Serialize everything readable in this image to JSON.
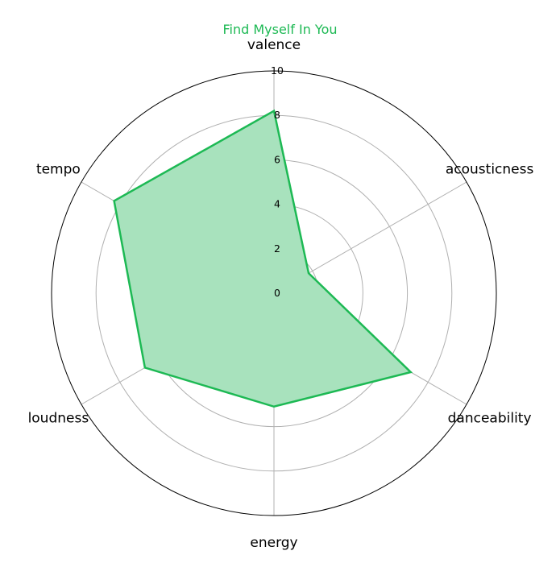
{
  "chart_data": {
    "type": "radar",
    "title": "Find Myself In You",
    "axes": [
      "valence",
      "acousticness",
      "danceability",
      "energy",
      "loudness",
      "tempo"
    ],
    "series": [
      {
        "name": "",
        "values": [
          8.2,
          1.8,
          7.1,
          5.1,
          6.7,
          8.3
        ]
      }
    ],
    "rlim": [
      0,
      10
    ],
    "r_ticks": [
      0,
      2,
      4,
      6,
      8,
      10
    ],
    "grid": true,
    "colors": {
      "title": "#1db954",
      "line": "#1db954",
      "fill": "#a8e2bd",
      "grid": "#b0b0b0",
      "outer": "#000000",
      "text": "#000000"
    }
  }
}
